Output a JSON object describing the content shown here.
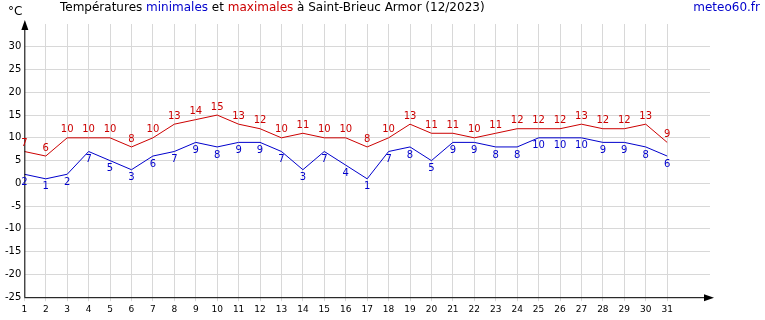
{
  "chart_data": {
    "type": "line",
    "title": "Températures minimales et maximales à Saint-Brieuc Armor (12/2023)",
    "ylabel": "°C",
    "source": "meteo60.fr",
    "x": [
      1,
      2,
      3,
      4,
      5,
      6,
      7,
      8,
      9,
      10,
      11,
      12,
      13,
      14,
      15,
      16,
      17,
      18,
      19,
      20,
      21,
      22,
      23,
      24,
      25,
      26,
      27,
      28,
      29,
      30,
      31
    ],
    "series": [
      {
        "name": "minimales",
        "color": "#0000cc",
        "values": [
          2,
          1,
          2,
          7,
          5,
          3,
          6,
          7,
          9,
          8,
          9,
          9,
          7,
          3,
          7,
          4,
          1,
          7,
          8,
          5,
          9,
          9,
          8,
          8,
          10,
          10,
          10,
          9,
          9,
          8,
          6
        ]
      },
      {
        "name": "maximales",
        "color": "#cc0000",
        "values": [
          7,
          6,
          10,
          10,
          10,
          8,
          10,
          13,
          14,
          15,
          13,
          12,
          10,
          11,
          10,
          10,
          8,
          10,
          13,
          11,
          11,
          10,
          11,
          12,
          12,
          12,
          13,
          12,
          12,
          13,
          9
        ]
      }
    ],
    "xlim": [
      1,
      33
    ],
    "xticks": [
      1,
      2,
      3,
      4,
      5,
      6,
      7,
      8,
      9,
      10,
      11,
      12,
      13,
      14,
      15,
      16,
      17,
      18,
      19,
      20,
      21,
      22,
      23,
      24,
      25,
      26,
      27,
      28,
      29,
      30,
      31
    ],
    "ylim": [
      -25,
      35
    ],
    "yticks": [
      -25,
      -20,
      -15,
      -10,
      -5,
      0,
      5,
      10,
      15,
      20,
      25,
      30
    ],
    "grid": true,
    "data_labels": true
  }
}
